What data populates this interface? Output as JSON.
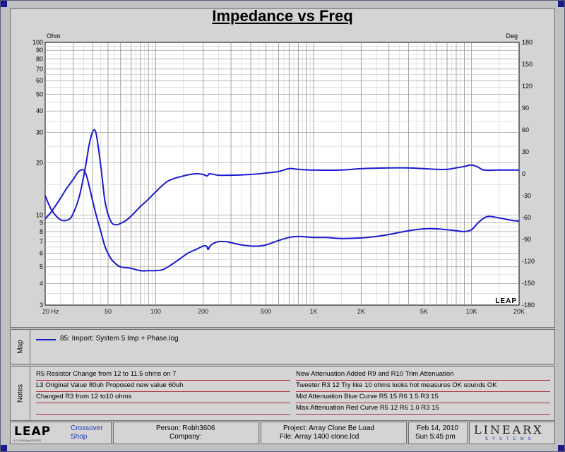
{
  "colors": {
    "curve": "#1a1ad0",
    "background": "#ffffff",
    "grid": "#a8a8a8",
    "note_line": "#b03040"
  },
  "chart_data": {
    "type": "line",
    "title": "Impedance vs Freq",
    "xscale": "log",
    "xlim": [
      20,
      20000
    ],
    "ylim_left": [
      3,
      100
    ],
    "yscale_left": "log",
    "ylim_right": [
      -180,
      180
    ],
    "left_unit": "Ohm",
    "right_unit": "Deg",
    "grid": true,
    "x_ticks": [
      {
        "v": 20,
        "label": "20  Hz"
      },
      {
        "v": 50,
        "label": "50"
      },
      {
        "v": 100,
        "label": "100"
      },
      {
        "v": 200,
        "label": "200"
      },
      {
        "v": 500,
        "label": "500"
      },
      {
        "v": 1000,
        "label": "1K"
      },
      {
        "v": 2000,
        "label": "2K"
      },
      {
        "v": 5000,
        "label": "5K"
      },
      {
        "v": 10000,
        "label": "10K"
      },
      {
        "v": 20000,
        "label": "20K"
      }
    ],
    "y_left_ticks": [
      3,
      4,
      5,
      6,
      7,
      8,
      9,
      10,
      20,
      30,
      40,
      50,
      60,
      70,
      80,
      90,
      100
    ],
    "y_right_ticks": [
      180,
      150,
      120,
      90,
      60,
      30,
      0,
      -30,
      -60,
      -90,
      -120,
      -150,
      -180
    ],
    "series": [
      {
        "axis": "left",
        "x": [
          20,
          22,
          25,
          27,
          30,
          33,
          36,
          40,
          42,
          45,
          48,
          52,
          56,
          60,
          70,
          80,
          90,
          100,
          110,
          120,
          140,
          160,
          180,
          200,
          210,
          215,
          220,
          230,
          250,
          280,
          300,
          350,
          400,
          450,
          500,
          600,
          700,
          800,
          1000,
          1200,
          1500,
          2000,
          2500,
          3000,
          4000,
          5000,
          6000,
          7000,
          8000,
          9000,
          10000,
          11000,
          12000,
          13000,
          15000,
          18000,
          20000
        ],
        "y": [
          9.5,
          10.5,
          12.5,
          14,
          16,
          18,
          17.5,
          12,
          10,
          8,
          6.5,
          5.6,
          5.2,
          5,
          4.9,
          4.75,
          4.75,
          4.75,
          4.8,
          5.0,
          5.5,
          6.0,
          6.3,
          6.6,
          6.6,
          6.3,
          6.55,
          6.8,
          7.0,
          7.0,
          6.9,
          6.7,
          6.6,
          6.6,
          6.7,
          7.1,
          7.4,
          7.5,
          7.4,
          7.4,
          7.3,
          7.35,
          7.5,
          7.7,
          8.1,
          8.3,
          8.3,
          8.2,
          8.1,
          8.0,
          8.2,
          9.0,
          9.6,
          9.8,
          9.6,
          9.3,
          9.2
        ]
      },
      {
        "axis": "right",
        "x": [
          20,
          22,
          25,
          28,
          30,
          33,
          36,
          38,
          40,
          42,
          45,
          48,
          52,
          56,
          60,
          65,
          70,
          80,
          90,
          100,
          120,
          150,
          180,
          200,
          210,
          215,
          220,
          250,
          300,
          400,
          500,
          600,
          700,
          800,
          1000,
          1500,
          2000,
          3000,
          4000,
          5000,
          6000,
          7000,
          8000,
          9000,
          10000,
          11000,
          12000,
          15000,
          20000
        ],
        "y": [
          -30,
          -50,
          -63,
          -63,
          -55,
          -30,
          10,
          40,
          58,
          55,
          10,
          -40,
          -65,
          -70,
          -68,
          -64,
          -58,
          -45,
          -35,
          -25,
          -10,
          -3,
          0,
          -1,
          -3,
          -2,
          0,
          -2,
          -2,
          -1,
          1,
          3,
          7,
          6,
          5,
          5,
          7,
          8,
          8,
          7,
          6,
          6,
          8,
          10,
          12,
          9,
          5,
          5,
          5
        ]
      }
    ]
  },
  "map": {
    "tab_label": "Map",
    "legend_label": "85: Import: System 5 Imp + Phase.log"
  },
  "notes": {
    "tab_label": "Notes",
    "left": [
      "R5 Resistor Change from 12 to 11.5 ohms on 7",
      "L3 Original Value 80uh Proposed new value 60uh",
      "Changed R3 from 12 to10 ohms",
      ""
    ],
    "right": [
      "New Attenuation  Added R9 and R10 Trim Attenuation",
      "Tweeter R3 12  Try like 10 ohms looks hot measures OK sounds OK",
      "Mid Attenuation Blue Curve R5 15 R6 1.5 R3 15",
      "Max Attenuation Red Curve R5 12 R6 1.0 R3 15"
    ]
  },
  "footer": {
    "logo_text": "LEAP",
    "logo_subtext": "5.2.0.306  Apr/20/2007",
    "product_line1": "Crossover",
    "product_line2": "Shop",
    "person": "Person: Robh3606",
    "company": "Company:",
    "project": "Project: Array Clone Be Load",
    "file": "File: Array 1400 clone.lcd",
    "date": "Feb 14, 2010",
    "time": "Sun  5:45 pm",
    "brand": "LINEARX",
    "brand_sub": "SYSTEMS"
  },
  "watermark": "LEAP"
}
